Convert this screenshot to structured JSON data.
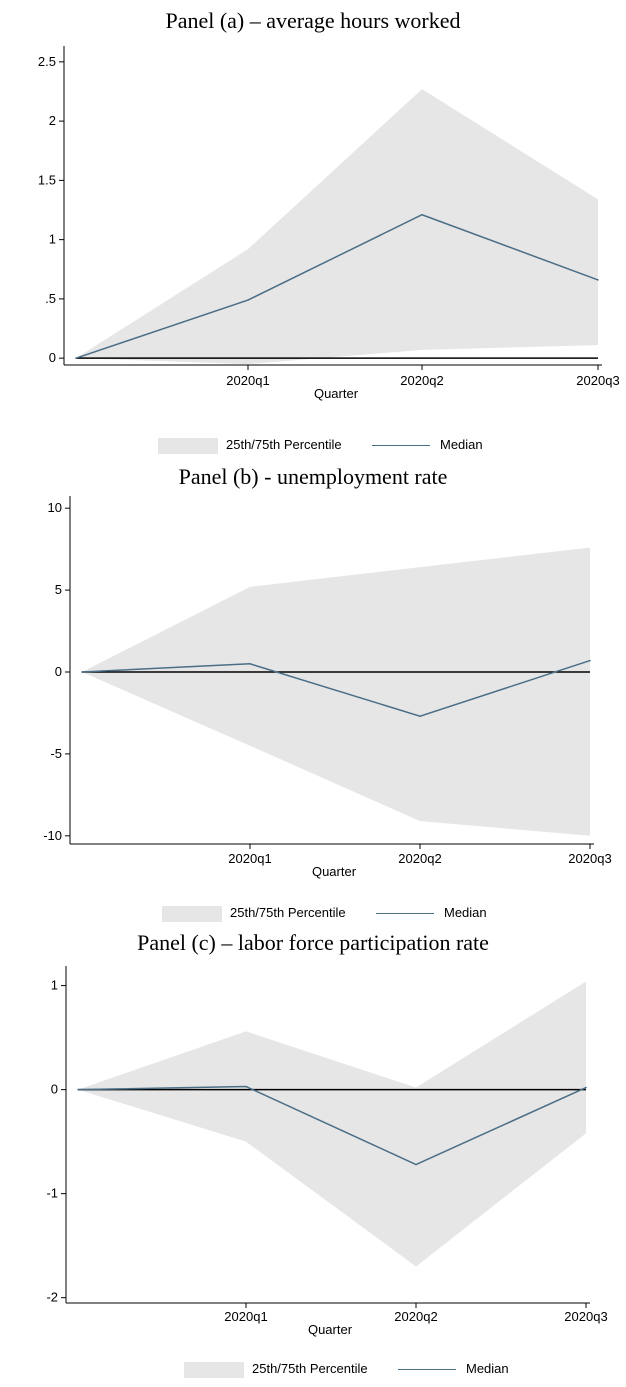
{
  "chart_data": [
    {
      "type": "area",
      "title": "Panel (a) – average hours worked",
      "xlabel": "Quarter",
      "ylabel": "",
      "categories": [
        "",
        "2020q1",
        "2020q2",
        "2020q3"
      ],
      "x_ticks": [
        "2020q1",
        "2020q2",
        "2020q3"
      ],
      "y_ticks": [
        "2.5",
        "2",
        "1.5",
        "1",
        ".5",
        "0"
      ],
      "ylim": [
        -0.1,
        2.6
      ],
      "zero_line": true,
      "legend_position": "bottom",
      "series": [
        {
          "name": "25th/75th Percentile",
          "kind": "band",
          "lower": [
            0,
            -0.05,
            0.07,
            0.11
          ],
          "upper": [
            0,
            0.92,
            2.27,
            1.34
          ]
        },
        {
          "name": "Median",
          "kind": "line",
          "values": [
            0,
            0.49,
            1.21,
            0.66
          ]
        }
      ]
    },
    {
      "type": "area",
      "title": "Panel (b) - unemployment rate",
      "xlabel": "Quarter",
      "ylabel": "",
      "categories": [
        "",
        "2020q1",
        "2020q2",
        "2020q3"
      ],
      "x_ticks": [
        "2020q1",
        "2020q2",
        "2020q3"
      ],
      "y_ticks": [
        "10",
        "5",
        "0",
        "-5",
        "-10"
      ],
      "ylim": [
        -10.5,
        10.5
      ],
      "zero_line": true,
      "legend_position": "bottom",
      "series": [
        {
          "name": "25th/75th Percentile",
          "kind": "band",
          "lower": [
            0,
            -4.5,
            -9.1,
            -10.0
          ],
          "upper": [
            0,
            5.2,
            6.4,
            7.6
          ]
        },
        {
          "name": "Median",
          "kind": "line",
          "values": [
            0,
            0.5,
            -2.7,
            0.7
          ]
        }
      ]
    },
    {
      "type": "area",
      "title": "Panel (c) – labor force participation rate",
      "xlabel": "Quarter",
      "ylabel": "",
      "categories": [
        "",
        "2020q1",
        "2020q2",
        "2020q3"
      ],
      "x_ticks": [
        "2020q1",
        "2020q2",
        "2020q3"
      ],
      "y_ticks": [
        "1",
        "0",
        "-1",
        "-2"
      ],
      "ylim": [
        -2.08,
        1.15
      ],
      "zero_line": true,
      "legend_position": "bottom",
      "series": [
        {
          "name": "25th/75th Percentile",
          "kind": "band",
          "lower": [
            0,
            -0.5,
            -1.7,
            -0.42
          ],
          "upper": [
            0,
            0.56,
            0.02,
            1.04
          ]
        },
        {
          "name": "Median",
          "kind": "line",
          "values": [
            0,
            0.03,
            -0.72,
            0.02
          ]
        }
      ]
    }
  ],
  "colors": {
    "band": "#e6e6e6",
    "median": "#4a6e86",
    "zero_line": "#000000",
    "axis": "#000000"
  }
}
